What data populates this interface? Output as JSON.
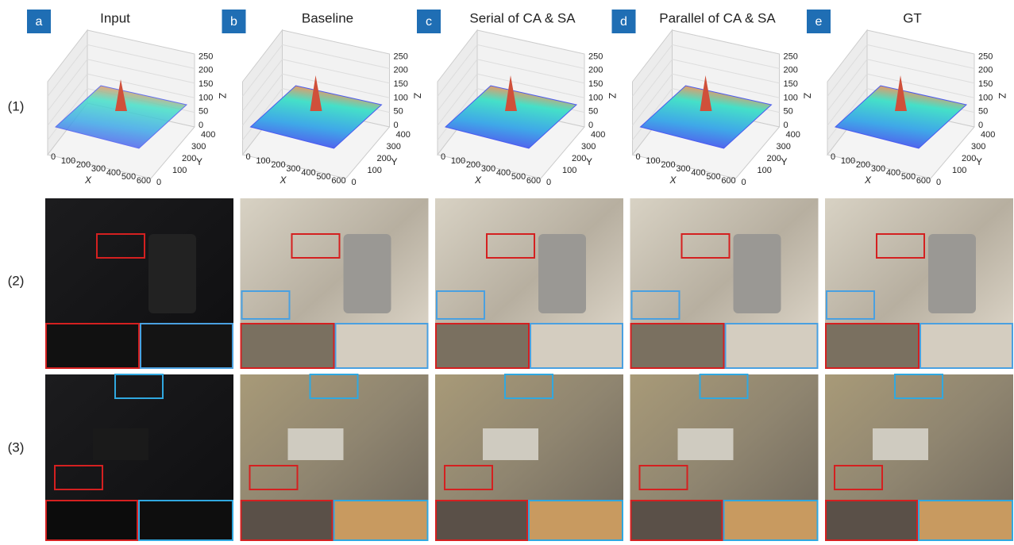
{
  "columns": [
    {
      "letter": "a",
      "title": "Input"
    },
    {
      "letter": "b",
      "title": "Baseline"
    },
    {
      "letter": "c",
      "title": "Serial of CA & SA"
    },
    {
      "letter": "d",
      "title": "Parallel of CA & SA"
    },
    {
      "letter": "e",
      "title": "GT"
    }
  ],
  "rows": [
    "(1)",
    "(2)",
    "(3)"
  ],
  "plot": {
    "x_label": "X",
    "y_label": "Y",
    "z_label": "Z",
    "x_ticks": [
      0,
      100,
      200,
      300,
      400,
      500,
      600
    ],
    "y_ticks": [
      0,
      100,
      200,
      300,
      400
    ],
    "z_ticks": [
      0,
      50,
      100,
      150,
      200,
      250
    ]
  }
}
